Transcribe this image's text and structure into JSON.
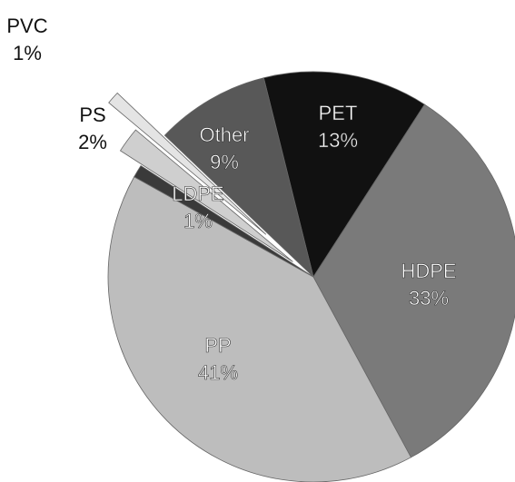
{
  "chart_data": {
    "type": "pie",
    "categories": [
      "PET",
      "HDPE",
      "PP",
      "LDPE",
      "PS",
      "PVC",
      "Other"
    ],
    "values": [
      13,
      33,
      41,
      1,
      2,
      1,
      9
    ],
    "value_labels": [
      "13%",
      "33%",
      "41%",
      "1%",
      "2%",
      "1%",
      "9%"
    ],
    "colors": [
      "#111111",
      "#7a7a7a",
      "#bdbdbd",
      "#3a3a3a",
      "#cfcfcf",
      "#e4e4e4",
      "#585858"
    ]
  }
}
